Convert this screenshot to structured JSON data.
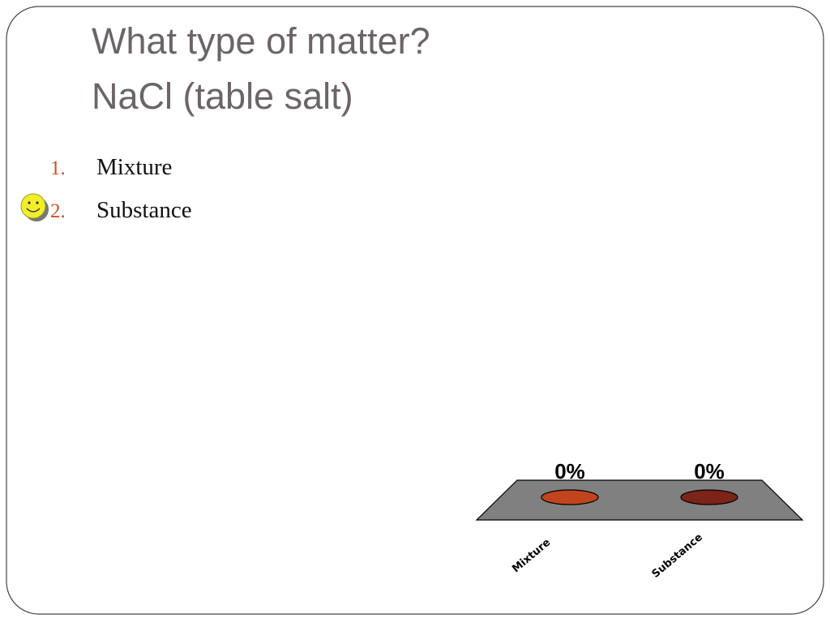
{
  "slide": {
    "title": [
      "What type of matter?",
      "NaCl (table salt)"
    ],
    "list": [
      {
        "number": "1.",
        "text": "Mixture"
      },
      {
        "number": "2.",
        "text": "Substance"
      }
    ]
  },
  "chart_data": {
    "type": "bar",
    "categories": [
      "Mixture",
      "Substance"
    ],
    "values": [
      0,
      0
    ],
    "value_labels": [
      "0%",
      "0%"
    ],
    "colors": [
      "#c2441c",
      "#7b2417"
    ]
  }
}
